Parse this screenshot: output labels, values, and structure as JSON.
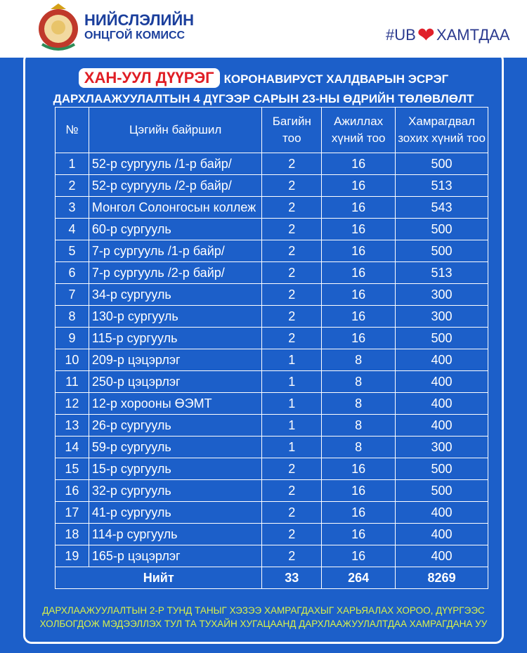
{
  "header": {
    "org_line1": "НИЙСЛЭЛИЙН",
    "org_line2": "ОНЦГОЙ КОМИСС",
    "hashtag_prefix": "#UB",
    "hashtag_suffix": "ХАМТДАА",
    "heart_icon": "heart",
    "accent": "#e01e25"
  },
  "title": {
    "district": "ХАН-УУЛ ДҮҮРЭГ",
    "line1": "КОРОНАВИРУСТ ХАЛДВАРЫН ЭСРЭГ",
    "line2": "ДАРХЛААЖУУЛАЛТЫН 4 ДҮГЭЭР САРЫН 23-НЫ ӨДРИЙН ТӨЛӨВЛӨЛТ"
  },
  "table": {
    "headers": [
      "№",
      "Цэгийн байршил",
      "Багийн тоо",
      "Ажиллах хүний тоо",
      "Хамрагдвал зохих хүний тоо"
    ],
    "rows": [
      [
        "1",
        "52-р сургууль /1-р байр/",
        "2",
        "16",
        "500"
      ],
      [
        "2",
        "52-р сургууль /2-р байр/",
        "2",
        "16",
        "513"
      ],
      [
        "3",
        "Монгол Солонгосын коллеж",
        "2",
        "16",
        "543"
      ],
      [
        "4",
        "60-р сургууль",
        "2",
        "16",
        "500"
      ],
      [
        "5",
        "7-р сургууль /1-р байр/",
        "2",
        "16",
        "500"
      ],
      [
        "6",
        "7-р сургууль /2-р байр/",
        "2",
        "16",
        "513"
      ],
      [
        "7",
        "34-р сургууль",
        "2",
        "16",
        "300"
      ],
      [
        "8",
        "130-р сургууль",
        "2",
        "16",
        "300"
      ],
      [
        "9",
        "115-р сургууль",
        "2",
        "16",
        "500"
      ],
      [
        "10",
        "209-р цэцэрлэг",
        "1",
        "8",
        "400"
      ],
      [
        "11",
        "250-р цэцэрлэг",
        "1",
        "8",
        "400"
      ],
      [
        "12",
        "12-р хорооны ӨЭМТ",
        "1",
        "8",
        "400"
      ],
      [
        "13",
        "26-р сургууль",
        "1",
        "8",
        "400"
      ],
      [
        "14",
        "59-р сургууль",
        "1",
        "8",
        "300"
      ],
      [
        "15",
        "15-р сургууль",
        "2",
        "16",
        "500"
      ],
      [
        "16",
        "32-р сургууль",
        "2",
        "16",
        "500"
      ],
      [
        "17",
        "41-р сургууль",
        "2",
        "16",
        "400"
      ],
      [
        "18",
        "114-р сургууль",
        "2",
        "16",
        "400"
      ],
      [
        "19",
        "165-р цэцэрлэг",
        "2",
        "16",
        "400"
      ]
    ],
    "total": {
      "label": "Нийт",
      "teams": "33",
      "workers": "264",
      "people": "8269"
    }
  },
  "footer": {
    "line1": "ДАРХЛААЖУУЛАЛТЫН 2-Р ТУНД ТАНЫГ ХЭЗЭЭ ХАМРАГДАХЫГ ХАРЬЯАЛАХ ХОРОО, ДҮҮРГЭЭС",
    "line2": "ХОЛБОГДОЖ МЭДЭЭЛЛЭХ ТУЛ ТА ТУХАЙН ХУГАЦААНД ДАРХЛААЖУУЛАЛТДАА ХАМРАГДАНА УУ"
  }
}
